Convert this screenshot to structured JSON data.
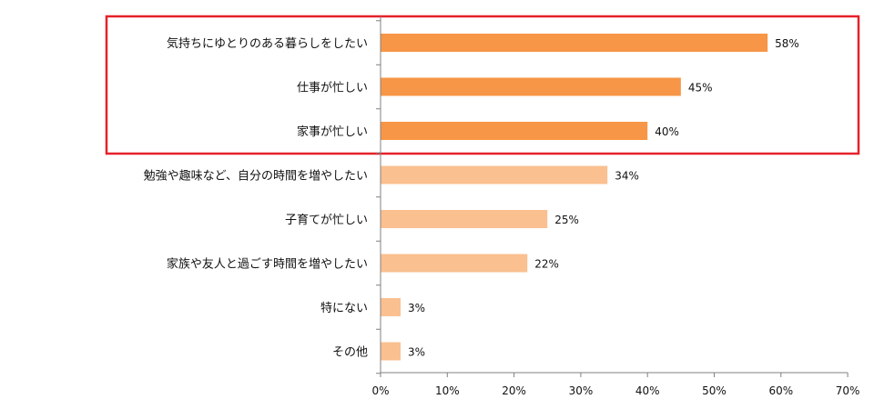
{
  "chart_data": {
    "type": "bar",
    "orientation": "horizontal",
    "categories": [
      "気持ちにゆとりのある暮らしをしたい",
      "仕事が忙しい",
      "家事が忙しい",
      "勉強や趣味など、自分の時間を増やしたい",
      "子育てが忙しい",
      "家族や友人と過ごす時間を増やしたい",
      "特にない",
      "その他"
    ],
    "values": [
      58,
      45,
      40,
      34,
      25,
      22,
      3,
      3
    ],
    "value_labels": [
      "58%",
      "45%",
      "40%",
      "34%",
      "25%",
      "22%",
      "3%",
      "3%"
    ],
    "highlighted_top_n": 3,
    "xlim": [
      0,
      70
    ],
    "x_ticks": [
      0,
      10,
      20,
      30,
      40,
      50,
      60,
      70
    ],
    "x_tick_labels": [
      "0%",
      "10%",
      "20%",
      "30%",
      "40%",
      "50%",
      "60%",
      "70%"
    ],
    "grid": false,
    "legend": "none",
    "colors": {
      "bar_highlight": "#F79646",
      "bar_normal": "#FAC090",
      "highlight_box": "#E6212A",
      "axis": "#808080",
      "text": "#111111"
    }
  }
}
